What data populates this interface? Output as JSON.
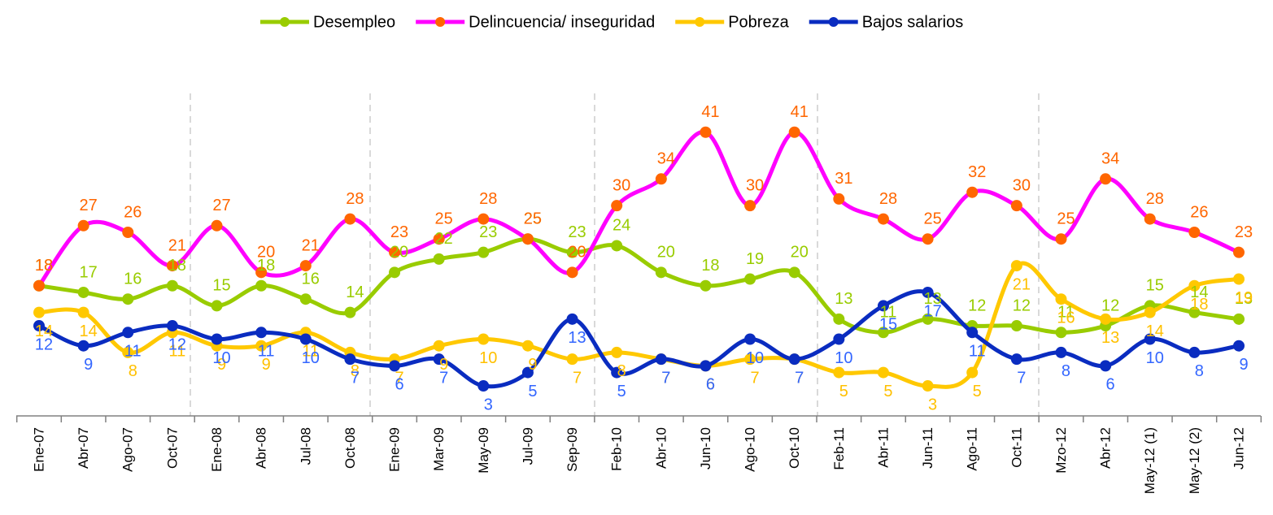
{
  "chart_data": {
    "type": "line",
    "categories": [
      "Ene-07",
      "Abr-07",
      "Ago-07",
      "Oct-07",
      "Ene-08",
      "Abr-08",
      "Jul-08",
      "Oct-08",
      "Ene-09",
      "Mar-09",
      "May-09",
      "Jul-09",
      "Sep-09",
      "Feb-10",
      "Abr-10",
      "Jun-10",
      "Ago-10",
      "Oct-10",
      "Feb-11",
      "Abr-11",
      "Jun-11",
      "Ago-11",
      "Oct-11",
      "Mzo-12",
      "Abr-12",
      "May-12 (1)",
      "May-12 (2)",
      "Jun-12"
    ],
    "series": [
      {
        "name": "Desempleo",
        "color": "#99cc00",
        "marker_color": "#99cc00",
        "label_color": "#99cc00",
        "values": [
          18,
          17,
          16,
          18,
          15,
          18,
          16,
          14,
          20,
          22,
          23,
          25,
          23,
          24,
          20,
          18,
          19,
          20,
          13,
          11,
          13,
          12,
          12,
          11,
          12,
          15,
          14,
          13
        ]
      },
      {
        "name": "Delincuencia/ inseguridad",
        "color": "#ff00ff",
        "marker_color": "#ff6600",
        "label_color": "#ff6600",
        "values": [
          18,
          27,
          26,
          21,
          27,
          20,
          21,
          28,
          23,
          25,
          28,
          25,
          20,
          30,
          34,
          41,
          30,
          41,
          31,
          28,
          25,
          32,
          30,
          25,
          34,
          28,
          26,
          23
        ]
      },
      {
        "name": "Pobreza",
        "color": "#ffc800",
        "marker_color": "#ffc800",
        "label_color": "#ffc000",
        "values": [
          14,
          14,
          8,
          11,
          9,
          9,
          11,
          8,
          7,
          9,
          10,
          9,
          7,
          8,
          7,
          6,
          7,
          7,
          5,
          5,
          3,
          5,
          21,
          16,
          13,
          14,
          18,
          19
        ]
      },
      {
        "name": "Bajos salarios",
        "color": "#0a2cc0",
        "marker_color": "#0a2cc0",
        "label_color": "#3366ff",
        "values": [
          12,
          9,
          11,
          12,
          10,
          11,
          10,
          7,
          6,
          7,
          3,
          5,
          13,
          5,
          7,
          6,
          10,
          7,
          10,
          15,
          17,
          11,
          7,
          8,
          6,
          10,
          8,
          9
        ]
      }
    ],
    "ylim": [
      -1.5,
      49
    ],
    "legend": "top"
  }
}
